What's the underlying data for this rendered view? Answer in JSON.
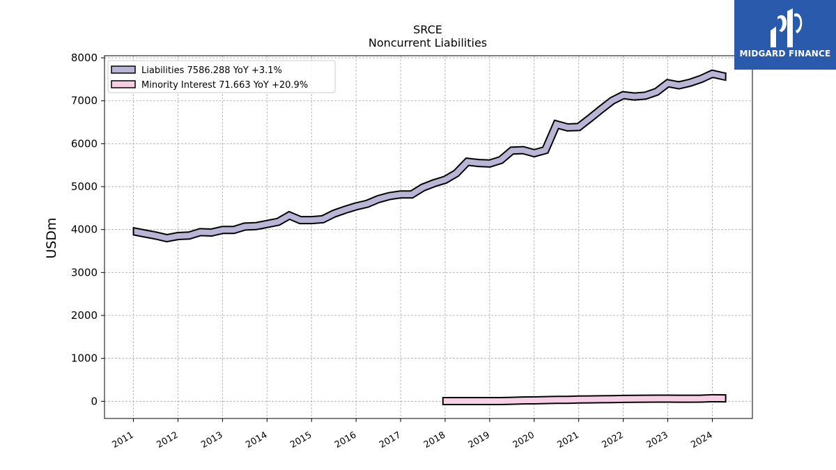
{
  "brand": {
    "name": "MIDGARD FINANCE",
    "bg_color": "#2a5aab"
  },
  "chart_data": {
    "type": "line",
    "title": "SRCE",
    "subtitle": "Noncurrent  Liabilities",
    "ylabel": "USDm",
    "xlabel": "",
    "ylim": [
      -400,
      8050
    ],
    "xlim": [
      2010.35,
      2024.9
    ],
    "yticks": [
      0,
      1000,
      2000,
      3000,
      4000,
      5000,
      6000,
      7000,
      8000
    ],
    "xticks": [
      2011,
      2012,
      2013,
      2014,
      2015,
      2016,
      2017,
      2018,
      2019,
      2020,
      2021,
      2022,
      2023,
      2024
    ],
    "grid": true,
    "legend_position": "top-left",
    "series": [
      {
        "name": "Liabilities",
        "legend_label": "Liabilities  7586.288 YoY +3.1%",
        "color": "#b9b5d6",
        "x": [
          2011.0,
          2011.25,
          2011.5,
          2011.75,
          2012.0,
          2012.25,
          2012.5,
          2012.75,
          2013.0,
          2013.25,
          2013.5,
          2013.75,
          2014.0,
          2014.25,
          2014.5,
          2014.75,
          2015.0,
          2015.25,
          2015.5,
          2015.75,
          2016.0,
          2016.25,
          2016.5,
          2016.75,
          2017.0,
          2017.25,
          2017.5,
          2017.75,
          2018.0,
          2018.25,
          2018.5,
          2018.75,
          2019.0,
          2019.25,
          2019.5,
          2019.75,
          2020.0,
          2020.25,
          2020.5,
          2020.75,
          2021.0,
          2021.25,
          2021.5,
          2021.75,
          2022.0,
          2022.25,
          2022.5,
          2022.75,
          2023.0,
          2023.25,
          2023.5,
          2023.75,
          2024.0,
          2024.3
        ],
        "values": [
          3960,
          3910,
          3860,
          3800,
          3850,
          3860,
          3940,
          3930,
          3990,
          3990,
          4070,
          4080,
          4130,
          4180,
          4330,
          4220,
          4220,
          4240,
          4370,
          4460,
          4540,
          4600,
          4710,
          4780,
          4820,
          4820,
          4980,
          5080,
          5160,
          5310,
          5580,
          5550,
          5540,
          5620,
          5840,
          5850,
          5780,
          5850,
          6450,
          6380,
          6390,
          6590,
          6800,
          7000,
          7130,
          7100,
          7120,
          7210,
          7410,
          7360,
          7420,
          7510,
          7630,
          7560
        ]
      },
      {
        "name": "Minority Interest",
        "legend_label": "Minority Interest  71.663 YoY +20.9%",
        "color": "#f6cfe4",
        "x": [
          2017.95,
          2018.25,
          2018.5,
          2018.75,
          2019.0,
          2019.25,
          2019.5,
          2019.75,
          2020.0,
          2020.25,
          2020.5,
          2020.75,
          2021.0,
          2021.25,
          2021.5,
          2021.75,
          2022.0,
          2022.25,
          2022.5,
          2022.75,
          2023.0,
          2023.25,
          2023.5,
          2023.75,
          2024.0,
          2024.3
        ],
        "values": [
          5,
          5,
          5,
          5,
          5,
          6,
          12,
          20,
          22,
          28,
          35,
          35,
          42,
          45,
          48,
          50,
          55,
          58,
          60,
          62,
          62,
          60,
          60,
          62,
          72,
          68
        ]
      }
    ]
  }
}
